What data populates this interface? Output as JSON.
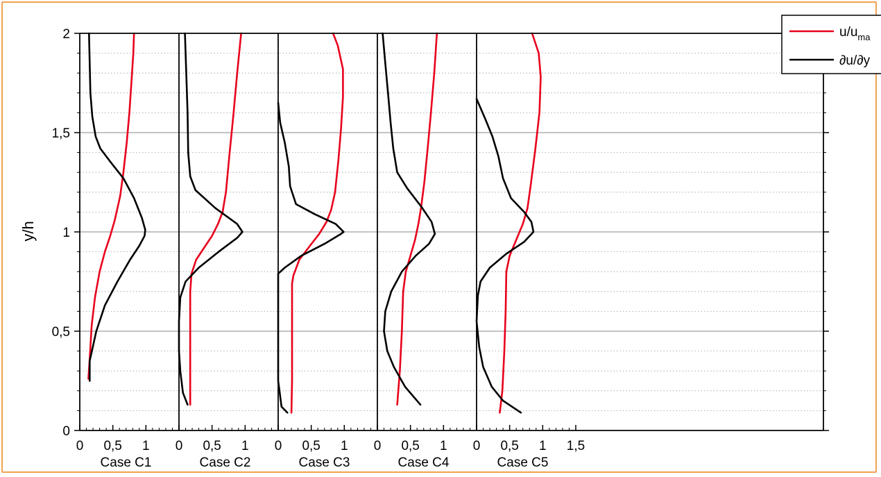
{
  "chart_data": {
    "type": "line",
    "ylabel": "y/h",
    "ylim": [
      0,
      2
    ],
    "y_ticks": [
      "0",
      "0,5",
      "1",
      "1,5",
      "2"
    ],
    "xlim_per_panel": [
      0,
      1.5
    ],
    "x_tick_labels": [
      "0",
      "0,5",
      "1"
    ],
    "x_last_tick_label": "1,5",
    "grid": "horizontal major solid, minor dotted",
    "legend": {
      "placement": "top-right",
      "entries": [
        {
          "label": "u/u",
          "sub": "ma",
          "color": "#e8001c"
        },
        {
          "label": "∂u/∂y",
          "color": "#000000"
        }
      ]
    },
    "colors": {
      "velocity": "#e8001c",
      "gradient": "#000000",
      "frame": "#f0a253"
    },
    "panels": [
      {
        "label": "Case C1",
        "series": [
          {
            "name": "u/u",
            "color": "#e8001c",
            "points": [
              [
                0.13,
                0.26
              ],
              [
                0.15,
                0.36
              ],
              [
                0.18,
                0.53
              ],
              [
                0.23,
                0.67
              ],
              [
                0.3,
                0.8
              ],
              [
                0.38,
                0.9
              ],
              [
                0.46,
                0.98
              ],
              [
                0.53,
                1.06
              ],
              [
                0.61,
                1.18
              ],
              [
                0.66,
                1.3
              ],
              [
                0.71,
                1.45
              ],
              [
                0.75,
                1.6
              ],
              [
                0.78,
                1.75
              ],
              [
                0.81,
                1.9
              ],
              [
                0.82,
                2.0
              ]
            ]
          },
          {
            "name": "∂u/∂y",
            "color": "#000000",
            "points": [
              [
                0.15,
                0.25
              ],
              [
                0.15,
                0.35
              ],
              [
                0.25,
                0.5
              ],
              [
                0.38,
                0.63
              ],
              [
                0.57,
                0.75
              ],
              [
                0.76,
                0.86
              ],
              [
                0.9,
                0.93
              ],
              [
                0.98,
                0.98
              ],
              [
                0.99,
                1.01
              ],
              [
                0.94,
                1.07
              ],
              [
                0.82,
                1.17
              ],
              [
                0.66,
                1.27
              ],
              [
                0.47,
                1.35
              ],
              [
                0.31,
                1.42
              ],
              [
                0.24,
                1.48
              ],
              [
                0.19,
                1.58
              ],
              [
                0.16,
                1.7
              ],
              [
                0.15,
                1.85
              ],
              [
                0.14,
                2.0
              ]
            ]
          }
        ]
      },
      {
        "label": "Case C2",
        "series": [
          {
            "name": "u/u",
            "color": "#e8001c",
            "points": [
              [
                0.17,
                0.13
              ],
              [
                0.17,
                0.3
              ],
              [
                0.17,
                0.5
              ],
              [
                0.17,
                0.7
              ],
              [
                0.19,
                0.79
              ],
              [
                0.26,
                0.86
              ],
              [
                0.38,
                0.92
              ],
              [
                0.5,
                0.98
              ],
              [
                0.59,
                1.04
              ],
              [
                0.66,
                1.1
              ],
              [
                0.71,
                1.2
              ],
              [
                0.76,
                1.38
              ],
              [
                0.82,
                1.58
              ],
              [
                0.88,
                1.8
              ],
              [
                0.94,
                2.0
              ]
            ]
          },
          {
            "name": "∂u/∂y",
            "color": "#000000",
            "points": [
              [
                0.13,
                0.13
              ],
              [
                0.06,
                0.19
              ],
              [
                0.02,
                0.3
              ],
              [
                0.0,
                0.4
              ],
              [
                0.0,
                0.55
              ],
              [
                0.02,
                0.67
              ],
              [
                0.1,
                0.75
              ],
              [
                0.3,
                0.82
              ],
              [
                0.6,
                0.9
              ],
              [
                0.88,
                0.97
              ],
              [
                0.96,
                1.0
              ],
              [
                0.88,
                1.04
              ],
              [
                0.55,
                1.12
              ],
              [
                0.25,
                1.21
              ],
              [
                0.17,
                1.28
              ],
              [
                0.14,
                1.4
              ],
              [
                0.13,
                1.6
              ],
              [
                0.11,
                1.8
              ],
              [
                0.09,
                2.0
              ]
            ]
          }
        ]
      },
      {
        "label": "Case C3",
        "series": [
          {
            "name": "u/u",
            "color": "#e8001c",
            "points": [
              [
                0.2,
                0.09
              ],
              [
                0.21,
                0.25
              ],
              [
                0.21,
                0.5
              ],
              [
                0.21,
                0.74
              ],
              [
                0.23,
                0.78
              ],
              [
                0.32,
                0.86
              ],
              [
                0.48,
                0.93
              ],
              [
                0.62,
                0.99
              ],
              [
                0.73,
                1.05
              ],
              [
                0.8,
                1.11
              ],
              [
                0.86,
                1.2
              ],
              [
                0.91,
                1.36
              ],
              [
                0.95,
                1.52
              ],
              [
                0.98,
                1.68
              ],
              [
                0.98,
                1.82
              ],
              [
                0.9,
                1.94
              ],
              [
                0.83,
                2.0
              ]
            ]
          },
          {
            "name": "∂u/∂y",
            "color": "#000000",
            "points": [
              [
                0.14,
                0.09
              ],
              [
                0.05,
                0.12
              ],
              [
                0.02,
                0.2
              ],
              [
                0.0,
                0.25
              ],
              [
                0.0,
                0.79
              ],
              [
                0.1,
                0.82
              ],
              [
                0.35,
                0.88
              ],
              [
                0.7,
                0.94
              ],
              [
                0.95,
                0.99
              ],
              [
                0.99,
                1.0
              ],
              [
                0.87,
                1.04
              ],
              [
                0.55,
                1.09
              ],
              [
                0.27,
                1.14
              ],
              [
                0.18,
                1.23
              ],
              [
                0.16,
                1.33
              ],
              [
                0.1,
                1.45
              ],
              [
                0.03,
                1.55
              ],
              [
                0.0,
                1.65
              ]
            ]
          }
        ]
      },
      {
        "label": "Case C4",
        "series": [
          {
            "name": "u/u",
            "color": "#e8001c",
            "points": [
              [
                0.3,
                0.13
              ],
              [
                0.34,
                0.3
              ],
              [
                0.37,
                0.5
              ],
              [
                0.39,
                0.7
              ],
              [
                0.43,
                0.8
              ],
              [
                0.5,
                0.88
              ],
              [
                0.57,
                0.96
              ],
              [
                0.62,
                1.04
              ],
              [
                0.66,
                1.12
              ],
              [
                0.71,
                1.25
              ],
              [
                0.76,
                1.42
              ],
              [
                0.81,
                1.6
              ],
              [
                0.86,
                1.8
              ],
              [
                0.9,
                2.0
              ]
            ]
          },
          {
            "name": "∂u/∂y",
            "color": "#000000",
            "points": [
              [
                0.65,
                0.13
              ],
              [
                0.42,
                0.22
              ],
              [
                0.25,
                0.32
              ],
              [
                0.15,
                0.4
              ],
              [
                0.1,
                0.5
              ],
              [
                0.12,
                0.6
              ],
              [
                0.21,
                0.7
              ],
              [
                0.37,
                0.8
              ],
              [
                0.58,
                0.88
              ],
              [
                0.78,
                0.94
              ],
              [
                0.87,
                0.99
              ],
              [
                0.82,
                1.05
              ],
              [
                0.68,
                1.12
              ],
              [
                0.45,
                1.22
              ],
              [
                0.3,
                1.3
              ],
              [
                0.24,
                1.42
              ],
              [
                0.2,
                1.55
              ],
              [
                0.16,
                1.7
              ],
              [
                0.12,
                1.85
              ],
              [
                0.08,
                2.0
              ]
            ]
          }
        ]
      },
      {
        "label": "Case C5",
        "series": [
          {
            "name": "u/u",
            "color": "#e8001c",
            "points": [
              [
                0.35,
                0.09
              ],
              [
                0.39,
                0.2
              ],
              [
                0.42,
                0.4
              ],
              [
                0.44,
                0.6
              ],
              [
                0.45,
                0.8
              ],
              [
                0.5,
                0.88
              ],
              [
                0.6,
                0.96
              ],
              [
                0.7,
                1.04
              ],
              [
                0.77,
                1.12
              ],
              [
                0.82,
                1.24
              ],
              [
                0.89,
                1.42
              ],
              [
                0.95,
                1.6
              ],
              [
                0.97,
                1.78
              ],
              [
                0.94,
                1.9
              ],
              [
                0.84,
                2.0
              ]
            ]
          },
          {
            "name": "∂u/∂y",
            "color": "#000000",
            "points": [
              [
                0.67,
                0.09
              ],
              [
                0.4,
                0.15
              ],
              [
                0.23,
                0.22
              ],
              [
                0.1,
                0.32
              ],
              [
                0.04,
                0.42
              ],
              [
                0.0,
                0.55
              ],
              [
                0.02,
                0.68
              ],
              [
                0.06,
                0.75
              ],
              [
                0.2,
                0.82
              ],
              [
                0.45,
                0.89
              ],
              [
                0.72,
                0.95
              ],
              [
                0.86,
                1.0
              ],
              [
                0.83,
                1.05
              ],
              [
                0.72,
                1.1
              ],
              [
                0.52,
                1.17
              ],
              [
                0.4,
                1.27
              ],
              [
                0.33,
                1.38
              ],
              [
                0.24,
                1.48
              ],
              [
                0.13,
                1.57
              ],
              [
                0.0,
                1.67
              ]
            ]
          }
        ]
      }
    ]
  }
}
